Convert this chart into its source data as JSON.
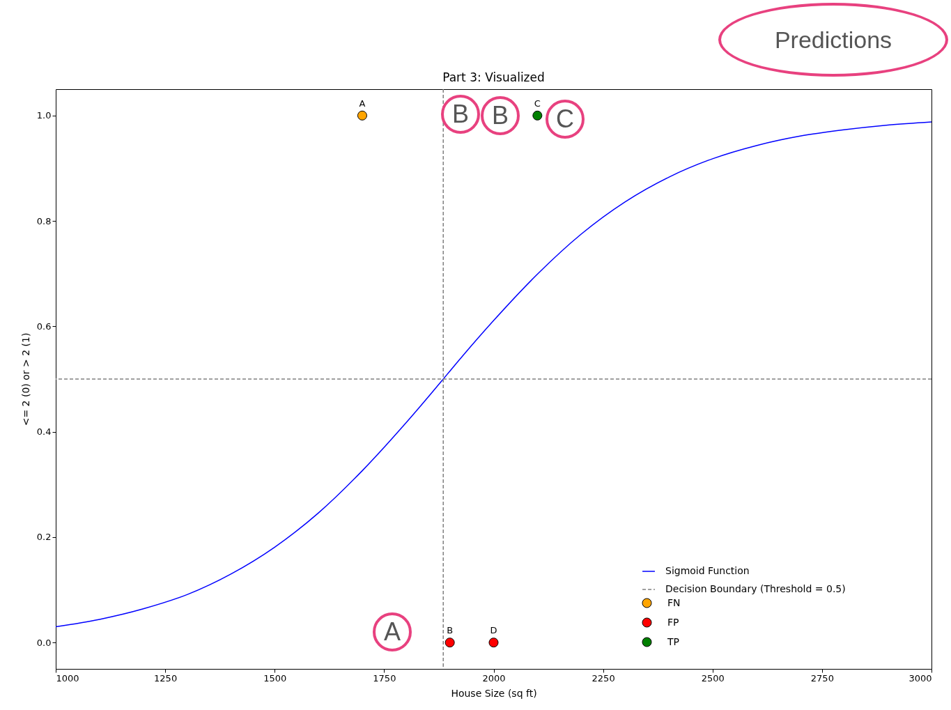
{
  "chart_data": {
    "type": "scatter",
    "title": "Part 3: Visualized",
    "xlabel": "House Size (sq ft)",
    "ylabel": "<= 2 (0) or > 2 (1)",
    "xlim": [
      1000,
      3000
    ],
    "xticks": [
      1000,
      1250,
      1500,
      1750,
      2000,
      2250,
      2500,
      2750,
      3000
    ],
    "ylim": [
      -0.05,
      1.05
    ],
    "yticks": [
      {
        "value": 0,
        "label": "0.0"
      },
      {
        "value": 0.2,
        "label": "0.2"
      },
      {
        "value": 0.4,
        "label": "0.4"
      },
      {
        "value": 0.6,
        "label": "0.6"
      },
      {
        "value": 0.8,
        "label": "0.8"
      },
      {
        "value": 1,
        "label": "1.0"
      }
    ],
    "marker": "circle",
    "legend": "bottom right",
    "grid": false,
    "series": [
      {
        "name": "Sigmoid Function",
        "type": "line",
        "color": "#0000ff",
        "line_style": "solid",
        "marker": "none",
        "x": [
          1000,
          1100,
          1200,
          1300,
          1400,
          1500,
          1600,
          1700,
          1800,
          1885,
          1900,
          2000,
          2100,
          2200,
          2300,
          2400,
          2500,
          2600,
          2700,
          2800,
          2900,
          3000
        ],
        "values": [
          0.03,
          0.044,
          0.064,
          0.091,
          0.13,
          0.181,
          0.246,
          0.326,
          0.417,
          0.5,
          0.515,
          0.611,
          0.699,
          0.775,
          0.836,
          0.883,
          0.918,
          0.943,
          0.961,
          0.973,
          0.982,
          0.988
        ]
      },
      {
        "name": "FN",
        "color": "#ffa500",
        "x": [
          1700
        ],
        "values": [
          1
        ],
        "value_labels": [
          "A"
        ]
      },
      {
        "name": "FP",
        "color": "#ff0000",
        "x": [
          1900,
          2000
        ],
        "values": [
          0,
          0
        ],
        "value_labels": [
          "B",
          "D"
        ]
      },
      {
        "name": "TP",
        "color": "#008000",
        "x": [
          2100
        ],
        "values": [
          1
        ],
        "value_labels": [
          "C"
        ]
      }
    ],
    "ref_lines": [
      {
        "axis": "y",
        "value": 0.5,
        "label": "Decision Boundary (Threshold = 0.5)",
        "color": "#808080",
        "line_style": "dashed"
      },
      {
        "axis": "x",
        "value": 1885,
        "color": "#808080",
        "line_style": "dashed"
      }
    ],
    "annotations": [
      "Predictions",
      "B",
      "B",
      "C",
      "A"
    ]
  }
}
